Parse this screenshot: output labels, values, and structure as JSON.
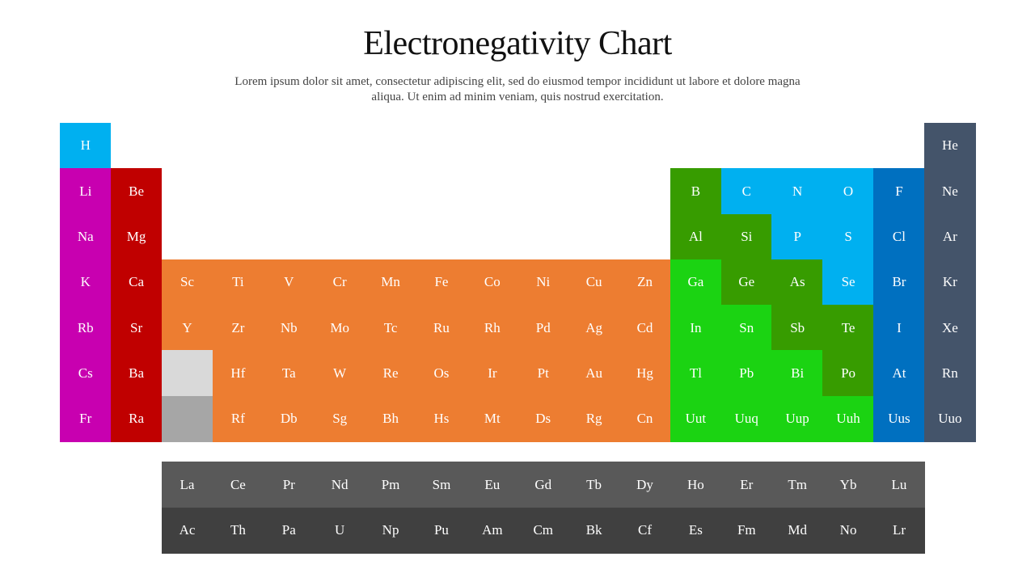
{
  "title": "Electronegativity Chart",
  "subtitle": "Lorem ipsum dolor sit amet, consectetur adipiscing elit, sed do eiusmod tempor incididunt ut labore et dolore magna aliqua. Ut enim ad minim veniam, quis nostrud exercitation.",
  "colors": {
    "hydrogen": "#00B0F0",
    "alkali": "#C800B0",
    "alkaline": "#C00000",
    "transition": "#ED7D31",
    "dark-green": "#379C00",
    "light-green": "#1BD312",
    "cyan": "#00B0F0",
    "halogen": "#0070C0",
    "noble": "#44546A",
    "lanthanide-slot": "#D9D9D9",
    "actinide-slot": "#A6A6A6",
    "lanthanide": "#595959",
    "actinide": "#404040"
  },
  "elements": [
    {
      "s": "H",
      "p": 1,
      "g": 1,
      "c": "hydrogen"
    },
    {
      "s": "He",
      "p": 1,
      "g": 18,
      "c": "noble"
    },
    {
      "s": "Li",
      "p": 2,
      "g": 1,
      "c": "alkali"
    },
    {
      "s": "Be",
      "p": 2,
      "g": 2,
      "c": "alkaline"
    },
    {
      "s": "B",
      "p": 2,
      "g": 13,
      "c": "dark-green"
    },
    {
      "s": "C",
      "p": 2,
      "g": 14,
      "c": "cyan"
    },
    {
      "s": "N",
      "p": 2,
      "g": 15,
      "c": "cyan"
    },
    {
      "s": "O",
      "p": 2,
      "g": 16,
      "c": "cyan"
    },
    {
      "s": "F",
      "p": 2,
      "g": 17,
      "c": "halogen"
    },
    {
      "s": "Ne",
      "p": 2,
      "g": 18,
      "c": "noble"
    },
    {
      "s": "Na",
      "p": 3,
      "g": 1,
      "c": "alkali"
    },
    {
      "s": "Mg",
      "p": 3,
      "g": 2,
      "c": "alkaline"
    },
    {
      "s": "Al",
      "p": 3,
      "g": 13,
      "c": "dark-green"
    },
    {
      "s": "Si",
      "p": 3,
      "g": 14,
      "c": "dark-green"
    },
    {
      "s": "P",
      "p": 3,
      "g": 15,
      "c": "cyan"
    },
    {
      "s": "S",
      "p": 3,
      "g": 16,
      "c": "cyan"
    },
    {
      "s": "Cl",
      "p": 3,
      "g": 17,
      "c": "halogen"
    },
    {
      "s": "Ar",
      "p": 3,
      "g": 18,
      "c": "noble"
    },
    {
      "s": "K",
      "p": 4,
      "g": 1,
      "c": "alkali"
    },
    {
      "s": "Ca",
      "p": 4,
      "g": 2,
      "c": "alkaline"
    },
    {
      "s": "Sc",
      "p": 4,
      "g": 3,
      "c": "transition"
    },
    {
      "s": "Ti",
      "p": 4,
      "g": 4,
      "c": "transition"
    },
    {
      "s": "V",
      "p": 4,
      "g": 5,
      "c": "transition"
    },
    {
      "s": "Cr",
      "p": 4,
      "g": 6,
      "c": "transition"
    },
    {
      "s": "Mn",
      "p": 4,
      "g": 7,
      "c": "transition"
    },
    {
      "s": "Fe",
      "p": 4,
      "g": 8,
      "c": "transition"
    },
    {
      "s": "Co",
      "p": 4,
      "g": 9,
      "c": "transition"
    },
    {
      "s": "Ni",
      "p": 4,
      "g": 10,
      "c": "transition"
    },
    {
      "s": "Cu",
      "p": 4,
      "g": 11,
      "c": "transition"
    },
    {
      "s": "Zn",
      "p": 4,
      "g": 12,
      "c": "transition"
    },
    {
      "s": "Ga",
      "p": 4,
      "g": 13,
      "c": "light-green"
    },
    {
      "s": "Ge",
      "p": 4,
      "g": 14,
      "c": "dark-green"
    },
    {
      "s": "As",
      "p": 4,
      "g": 15,
      "c": "dark-green"
    },
    {
      "s": "Se",
      "p": 4,
      "g": 16,
      "c": "cyan"
    },
    {
      "s": "Br",
      "p": 4,
      "g": 17,
      "c": "halogen"
    },
    {
      "s": "Kr",
      "p": 4,
      "g": 18,
      "c": "noble"
    },
    {
      "s": "Rb",
      "p": 5,
      "g": 1,
      "c": "alkali"
    },
    {
      "s": "Sr",
      "p": 5,
      "g": 2,
      "c": "alkaline"
    },
    {
      "s": "Y",
      "p": 5,
      "g": 3,
      "c": "transition"
    },
    {
      "s": "Zr",
      "p": 5,
      "g": 4,
      "c": "transition"
    },
    {
      "s": "Nb",
      "p": 5,
      "g": 5,
      "c": "transition"
    },
    {
      "s": "Mo",
      "p": 5,
      "g": 6,
      "c": "transition"
    },
    {
      "s": "Tc",
      "p": 5,
      "g": 7,
      "c": "transition"
    },
    {
      "s": "Ru",
      "p": 5,
      "g": 8,
      "c": "transition"
    },
    {
      "s": "Rh",
      "p": 5,
      "g": 9,
      "c": "transition"
    },
    {
      "s": "Pd",
      "p": 5,
      "g": 10,
      "c": "transition"
    },
    {
      "s": "Ag",
      "p": 5,
      "g": 11,
      "c": "transition"
    },
    {
      "s": "Cd",
      "p": 5,
      "g": 12,
      "c": "transition"
    },
    {
      "s": "In",
      "p": 5,
      "g": 13,
      "c": "light-green"
    },
    {
      "s": "Sn",
      "p": 5,
      "g": 14,
      "c": "light-green"
    },
    {
      "s": "Sb",
      "p": 5,
      "g": 15,
      "c": "dark-green"
    },
    {
      "s": "Te",
      "p": 5,
      "g": 16,
      "c": "dark-green"
    },
    {
      "s": "I",
      "p": 5,
      "g": 17,
      "c": "halogen"
    },
    {
      "s": "Xe",
      "p": 5,
      "g": 18,
      "c": "noble"
    },
    {
      "s": "Cs",
      "p": 6,
      "g": 1,
      "c": "alkali"
    },
    {
      "s": "Ba",
      "p": 6,
      "g": 2,
      "c": "alkaline"
    },
    {
      "s": "",
      "p": 6,
      "g": 3,
      "c": "lanthanide-slot"
    },
    {
      "s": "Hf",
      "p": 6,
      "g": 4,
      "c": "transition"
    },
    {
      "s": "Ta",
      "p": 6,
      "g": 5,
      "c": "transition"
    },
    {
      "s": "W",
      "p": 6,
      "g": 6,
      "c": "transition"
    },
    {
      "s": "Re",
      "p": 6,
      "g": 7,
      "c": "transition"
    },
    {
      "s": "Os",
      "p": 6,
      "g": 8,
      "c": "transition"
    },
    {
      "s": "Ir",
      "p": 6,
      "g": 9,
      "c": "transition"
    },
    {
      "s": "Pt",
      "p": 6,
      "g": 10,
      "c": "transition"
    },
    {
      "s": "Au",
      "p": 6,
      "g": 11,
      "c": "transition"
    },
    {
      "s": "Hg",
      "p": 6,
      "g": 12,
      "c": "transition"
    },
    {
      "s": "Tl",
      "p": 6,
      "g": 13,
      "c": "light-green"
    },
    {
      "s": "Pb",
      "p": 6,
      "g": 14,
      "c": "light-green"
    },
    {
      "s": "Bi",
      "p": 6,
      "g": 15,
      "c": "light-green"
    },
    {
      "s": "Po",
      "p": 6,
      "g": 16,
      "c": "dark-green"
    },
    {
      "s": "At",
      "p": 6,
      "g": 17,
      "c": "halogen"
    },
    {
      "s": "Rn",
      "p": 6,
      "g": 18,
      "c": "noble"
    },
    {
      "s": "Fr",
      "p": 7,
      "g": 1,
      "c": "alkali"
    },
    {
      "s": "Ra",
      "p": 7,
      "g": 2,
      "c": "alkaline"
    },
    {
      "s": "",
      "p": 7,
      "g": 3,
      "c": "actinide-slot"
    },
    {
      "s": "Rf",
      "p": 7,
      "g": 4,
      "c": "transition"
    },
    {
      "s": "Db",
      "p": 7,
      "g": 5,
      "c": "transition"
    },
    {
      "s": "Sg",
      "p": 7,
      "g": 6,
      "c": "transition"
    },
    {
      "s": "Bh",
      "p": 7,
      "g": 7,
      "c": "transition"
    },
    {
      "s": "Hs",
      "p": 7,
      "g": 8,
      "c": "transition"
    },
    {
      "s": "Mt",
      "p": 7,
      "g": 9,
      "c": "transition"
    },
    {
      "s": "Ds",
      "p": 7,
      "g": 10,
      "c": "transition"
    },
    {
      "s": "Rg",
      "p": 7,
      "g": 11,
      "c": "transition"
    },
    {
      "s": "Cn",
      "p": 7,
      "g": 12,
      "c": "transition"
    },
    {
      "s": "Uut",
      "p": 7,
      "g": 13,
      "c": "light-green"
    },
    {
      "s": "Uuq",
      "p": 7,
      "g": 14,
      "c": "light-green"
    },
    {
      "s": "Uup",
      "p": 7,
      "g": 15,
      "c": "light-green"
    },
    {
      "s": "Uuh",
      "p": 7,
      "g": 16,
      "c": "light-green"
    },
    {
      "s": "Uus",
      "p": 7,
      "g": 17,
      "c": "halogen"
    },
    {
      "s": "Uuo",
      "p": 7,
      "g": 18,
      "c": "noble"
    }
  ],
  "lanthanides": [
    "La",
    "Ce",
    "Pr",
    "Nd",
    "Pm",
    "Sm",
    "Eu",
    "Gd",
    "Tb",
    "Dy",
    "Ho",
    "Er",
    "Tm",
    "Yb",
    "Lu"
  ],
  "actinides": [
    "Ac",
    "Th",
    "Pa",
    "U",
    "Np",
    "Pu",
    "Am",
    "Cm",
    "Bk",
    "Cf",
    "Es",
    "Fm",
    "Md",
    "No",
    "Lr"
  ]
}
